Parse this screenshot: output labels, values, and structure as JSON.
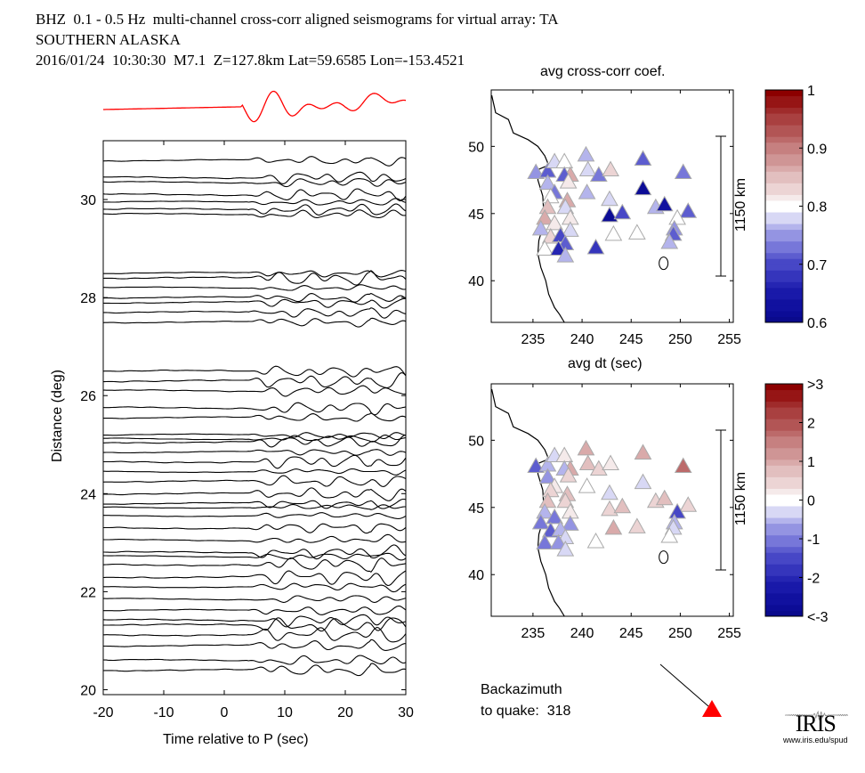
{
  "header": {
    "line1": "BHZ  0.1 - 0.5 Hz  multi-channel cross-corr aligned seismograms for virtual array: TA",
    "line2": "SOUTHERN ALASKA",
    "line3": "2016/01/24  10:30:30  M7.1  Z=127.8km Lat=59.6585 Lon=-153.4521"
  },
  "chart_data": [
    {
      "type": "line",
      "name": "record-section",
      "xlabel": "Time relative to P (sec)",
      "ylabel": "Distance (deg)",
      "xlim": [
        -20,
        30
      ],
      "ylim": [
        19.9,
        31.2
      ],
      "xticks": [
        -20,
        -10,
        0,
        10,
        20,
        30
      ],
      "yticks": [
        20,
        22,
        24,
        26,
        28,
        30
      ],
      "trace_distances": [
        30.8,
        30.45,
        30.35,
        30.1,
        29.95,
        29.8,
        29.7,
        28.5,
        28.4,
        28.2,
        28.0,
        27.9,
        27.7,
        27.5,
        26.5,
        26.3,
        26.1,
        25.75,
        25.55,
        25.2,
        25.12,
        25.05,
        24.85,
        24.65,
        24.45,
        24.25,
        24.0,
        23.8,
        23.72,
        23.55,
        23.3,
        23.05,
        22.8,
        22.72,
        22.55,
        22.3,
        22.1,
        21.85,
        21.62,
        21.42,
        21.32,
        21.12,
        20.9,
        20.6,
        20.4
      ],
      "stack_color": "#ff0000"
    },
    {
      "type": "scatter",
      "name": "avg-cross-corr-map",
      "title": "avg cross-corr coef.",
      "xlabel": "avg dt (sec)",
      "xlim": [
        230.75,
        255.4
      ],
      "ylim": [
        36.9,
        54.2
      ],
      "xticks": [
        235,
        240,
        245,
        250,
        255
      ],
      "yticks": [
        40,
        45,
        50
      ],
      "scale_label": "1150 km",
      "colorbar": {
        "min": 0.6,
        "max": 1.0,
        "center": 0.8,
        "ticks": [
          "0.6",
          "0.7",
          "0.8",
          "0.9",
          "1"
        ]
      },
      "stations": [
        [
          235.3,
          48.0,
          0.75
        ],
        [
          236.5,
          48.1,
          0.72
        ],
        [
          237.2,
          48.8,
          0.78
        ],
        [
          238.2,
          48.8,
          0.8
        ],
        [
          238.8,
          47.8,
          0.86
        ],
        [
          238.2,
          47.8,
          0.72
        ],
        [
          236.5,
          47.2,
          0.76
        ],
        [
          237.2,
          46.5,
          0.74
        ],
        [
          238.6,
          47.3,
          0.81
        ],
        [
          236.8,
          46.2,
          0.8
        ],
        [
          238.5,
          45.9,
          0.86
        ],
        [
          236.5,
          45.4,
          0.85
        ],
        [
          238.3,
          45.4,
          0.78
        ],
        [
          236.2,
          44.6,
          0.86
        ],
        [
          237.2,
          44.2,
          0.82
        ],
        [
          238.8,
          44.6,
          0.81
        ],
        [
          235.8,
          43.8,
          0.77
        ],
        [
          238.8,
          43.7,
          0.79
        ],
        [
          236.8,
          43.2,
          0.84
        ],
        [
          237.8,
          43.3,
          0.7
        ],
        [
          238.3,
          42.7,
          0.72
        ],
        [
          236.2,
          42.3,
          0.8
        ],
        [
          237.6,
          42.3,
          0.67
        ],
        [
          238.3,
          41.8,
          0.76
        ],
        [
          240.4,
          49.3,
          0.77
        ],
        [
          240.6,
          48.2,
          0.79
        ],
        [
          241.7,
          47.8,
          0.74
        ],
        [
          242.9,
          48.2,
          0.83
        ],
        [
          240.5,
          46.5,
          0.77
        ],
        [
          242.8,
          46.0,
          0.79
        ],
        [
          242.8,
          44.8,
          0.62
        ],
        [
          244.1,
          45.0,
          0.7
        ],
        [
          241.4,
          42.4,
          0.69
        ],
        [
          243.2,
          43.4,
          0.8
        ],
        [
          245.6,
          43.5,
          0.8
        ],
        [
          246.2,
          49.0,
          0.72
        ],
        [
          246.2,
          46.8,
          0.62
        ],
        [
          247.5,
          45.4,
          0.76
        ],
        [
          248.4,
          45.6,
          0.64
        ],
        [
          250.3,
          48.0,
          0.73
        ],
        [
          250.8,
          45.1,
          0.72
        ],
        [
          249.7,
          44.6,
          0.8
        ],
        [
          249.4,
          43.8,
          0.75
        ],
        [
          249.3,
          43.4,
          0.72
        ],
        [
          248.9,
          42.8,
          0.77
        ]
      ]
    },
    {
      "type": "scatter",
      "name": "dt-residual-map",
      "xlim": [
        230.75,
        255.4
      ],
      "ylim": [
        36.9,
        54.2
      ],
      "xticks": [
        235,
        240,
        245,
        250,
        255
      ],
      "yticks": [
        40,
        45,
        50
      ],
      "scale_label": "1150 km",
      "colorbar": {
        "min": -3,
        "max": 3,
        "center": 0,
        "ticks": [
          "<-3",
          "-2",
          "-1",
          "0",
          "1",
          "2",
          ">3"
        ]
      },
      "stations": [
        [
          235.3,
          48.0,
          -1.2
        ],
        [
          236.5,
          48.1,
          -0.6
        ],
        [
          237.2,
          48.8,
          -0.3
        ],
        [
          238.2,
          48.8,
          0.2
        ],
        [
          238.8,
          47.8,
          0.9
        ],
        [
          238.2,
          47.8,
          -0.4
        ],
        [
          236.5,
          47.2,
          -0.8
        ],
        [
          237.2,
          46.5,
          0.3
        ],
        [
          238.6,
          47.3,
          0.6
        ],
        [
          236.8,
          46.2,
          0.4
        ],
        [
          238.5,
          45.9,
          0.8
        ],
        [
          236.5,
          45.4,
          0.7
        ],
        [
          238.3,
          45.4,
          0.5
        ],
        [
          236.2,
          44.6,
          -0.5
        ],
        [
          237.2,
          44.2,
          -0.9
        ],
        [
          238.8,
          44.6,
          0.3
        ],
        [
          235.8,
          43.8,
          -1.0
        ],
        [
          238.8,
          43.7,
          -0.7
        ],
        [
          236.8,
          43.2,
          -1.3
        ],
        [
          237.8,
          43.3,
          -0.6
        ],
        [
          238.3,
          42.7,
          -0.3
        ],
        [
          236.2,
          42.3,
          -1.1
        ],
        [
          237.6,
          42.3,
          -0.8
        ],
        [
          238.3,
          41.8,
          -0.2
        ],
        [
          240.4,
          49.3,
          0.9
        ],
        [
          240.6,
          48.2,
          0.7
        ],
        [
          241.7,
          47.8,
          0.6
        ],
        [
          242.9,
          48.2,
          0.2
        ],
        [
          240.5,
          46.5,
          0.1
        ],
        [
          242.8,
          46.0,
          -0.2
        ],
        [
          242.8,
          44.8,
          0.6
        ],
        [
          244.1,
          45.0,
          0.8
        ],
        [
          241.4,
          42.4,
          0.1
        ],
        [
          243.2,
          43.4,
          1.0
        ],
        [
          245.6,
          43.5,
          0.5
        ],
        [
          246.2,
          49.0,
          1.1
        ],
        [
          246.2,
          46.8,
          -0.3
        ],
        [
          247.5,
          45.4,
          0.6
        ],
        [
          248.4,
          45.6,
          0.8
        ],
        [
          250.3,
          48.0,
          1.8
        ],
        [
          250.8,
          45.1,
          0.5
        ],
        [
          249.7,
          44.6,
          -1.5
        ],
        [
          249.4,
          43.8,
          -0.4
        ],
        [
          249.3,
          43.4,
          -0.2
        ],
        [
          248.9,
          42.8,
          0.0
        ]
      ]
    }
  ],
  "backazimuth": {
    "line1": "Backazimuth",
    "line2": "to quake:  318",
    "value": 318
  },
  "logo": {
    "name": "IRIS",
    "url": "www.iris.edu/spud"
  }
}
